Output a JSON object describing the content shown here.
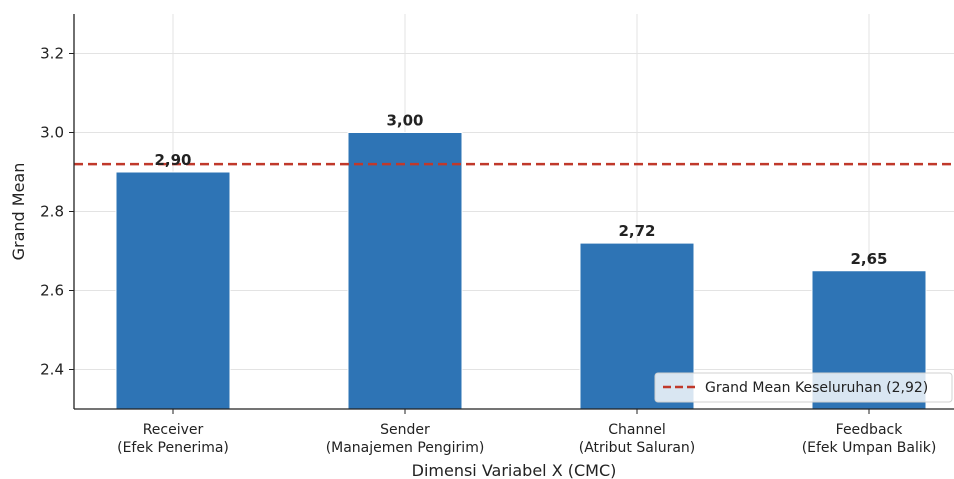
{
  "chart_data": {
    "type": "bar",
    "categories": [
      [
        "Receiver",
        "(Efek Penerima)"
      ],
      [
        "Sender",
        "(Manajemen Pengirim)"
      ],
      [
        "Channel",
        "(Atribut Saluran)"
      ],
      [
        "Feedback",
        "(Efek Umpan Balik)"
      ]
    ],
    "values": [
      2.9,
      3.0,
      2.72,
      2.65
    ],
    "data_labels": [
      "2,90",
      "3,00",
      "2,72",
      "2,65"
    ],
    "bar_color": "#2e74b5",
    "xlabel": "Dimensi Variabel X (CMC)",
    "ylabel": "Grand Mean",
    "ylim": [
      2.3,
      3.3
    ],
    "yticks": [
      2.4,
      2.6,
      2.8,
      3.0,
      3.2
    ],
    "ytick_labels": [
      "2.4",
      "2.6",
      "2.8",
      "3.0",
      "3.2"
    ],
    "grid": true,
    "reference_line": {
      "value": 2.92,
      "label": "Grand Mean Keseluruhan (2,92)",
      "color": "#c0392b",
      "style": "dashed"
    },
    "legend_position": "lower-right"
  }
}
